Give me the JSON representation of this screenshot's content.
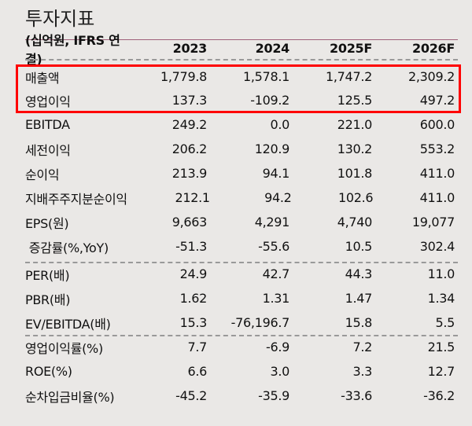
{
  "title": "투자지표",
  "header": {
    "label": "(십억원, IFRS 연결)",
    "cols": [
      "2023",
      "2024",
      "2025F",
      "2026F"
    ]
  },
  "rows": [
    {
      "label": "매출액",
      "values": [
        "1,779.8",
        "1,578.1",
        "1,747.2",
        "2,309.2"
      ]
    },
    {
      "label": "영업이익",
      "values": [
        "137.3",
        "-109.2",
        "125.5",
        "497.2"
      ]
    },
    {
      "label": "EBITDA",
      "values": [
        "249.2",
        "0.0",
        "221.0",
        "600.0"
      ]
    },
    {
      "label": "세전이익",
      "values": [
        "206.2",
        "120.9",
        "130.2",
        "553.2"
      ]
    },
    {
      "label": "순이익",
      "values": [
        "213.9",
        "94.1",
        "101.8",
        "411.0"
      ]
    },
    {
      "label": "지배주주지분순이익",
      "values": [
        "212.1",
        "94.2",
        "102.6",
        "411.0"
      ]
    },
    {
      "label": "EPS(원)",
      "values": [
        "9,663",
        "4,291",
        "4,740",
        "19,077"
      ]
    },
    {
      "label": " 증감률(%,YoY)",
      "values": [
        "-51.3",
        "-55.6",
        "10.5",
        "302.4"
      ]
    },
    {
      "label": "PER(배)",
      "values": [
        "24.9",
        "42.7",
        "44.3",
        "11.0"
      ]
    },
    {
      "label": "PBR(배)",
      "values": [
        "1.62",
        "1.31",
        "1.47",
        "1.34"
      ]
    },
    {
      "label": "EV/EBITDA(배)",
      "values": [
        "15.3",
        "-76,196.7",
        "15.8",
        "5.5"
      ]
    },
    {
      "label": "영업이익률(%)",
      "values": [
        "7.7",
        "-6.9",
        "7.2",
        "21.5"
      ]
    },
    {
      "label": "ROE(%)",
      "values": [
        "6.6",
        "3.0",
        "3.3",
        "12.7"
      ]
    },
    {
      "label": "순차입금비율(%)",
      "values": [
        "-45.2",
        "-35.9",
        "-33.6",
        "-36.2"
      ]
    }
  ],
  "highlight_color": "#ff0000"
}
